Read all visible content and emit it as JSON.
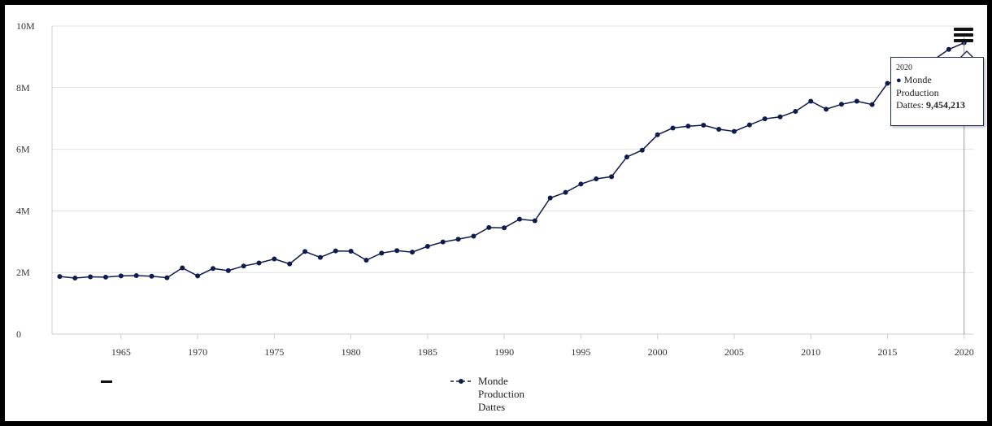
{
  "chart_data": {
    "type": "line",
    "title": "",
    "xlabel": "",
    "ylabel": "",
    "xlim": [
      1960.5,
      2020.6
    ],
    "ylim": [
      0,
      10000000
    ],
    "x_ticks": [
      1965,
      1970,
      1975,
      1980,
      1985,
      1990,
      1995,
      2000,
      2005,
      2010,
      2015,
      2020
    ],
    "y_ticks": [
      0,
      2000000,
      4000000,
      6000000,
      8000000,
      10000000
    ],
    "y_tick_labels": [
      "0",
      "2M",
      "4M",
      "6M",
      "8M",
      "10M"
    ],
    "grid": true,
    "legend_position": "bottom-center",
    "series": [
      {
        "name": "Monde Production Dattes",
        "color": "#0f1b4c",
        "x": [
          1961,
          1962,
          1963,
          1964,
          1965,
          1966,
          1967,
          1968,
          1969,
          1970,
          1971,
          1972,
          1973,
          1974,
          1975,
          1976,
          1977,
          1978,
          1979,
          1980,
          1981,
          1982,
          1983,
          1984,
          1985,
          1986,
          1987,
          1988,
          1989,
          1990,
          1991,
          1992,
          1993,
          1994,
          1995,
          1996,
          1997,
          1998,
          1999,
          2000,
          2001,
          2002,
          2003,
          2004,
          2005,
          2006,
          2007,
          2008,
          2009,
          2010,
          2011,
          2012,
          2013,
          2014,
          2015,
          2016,
          2017,
          2018,
          2019,
          2020
        ],
        "values": [
          1870000,
          1820000,
          1860000,
          1850000,
          1890000,
          1900000,
          1880000,
          1830000,
          2150000,
          1890000,
          2130000,
          2060000,
          2210000,
          2310000,
          2440000,
          2280000,
          2680000,
          2490000,
          2700000,
          2690000,
          2400000,
          2630000,
          2710000,
          2660000,
          2850000,
          2990000,
          3080000,
          3180000,
          3460000,
          3450000,
          3730000,
          3680000,
          4420000,
          4600000,
          4870000,
          5040000,
          5110000,
          5750000,
          5970000,
          6470000,
          6690000,
          6750000,
          6780000,
          6650000,
          6580000,
          6790000,
          6990000,
          7050000,
          7230000,
          7560000,
          7300000,
          7460000,
          7560000,
          7450000,
          8140000,
          8260000,
          8570000,
          8900000,
          9240000,
          9454213
        ]
      }
    ]
  },
  "tooltip": {
    "year": "2020",
    "series_line1": "Monde",
    "series_line2": "Production",
    "series_line3_label": "Dattes: ",
    "value": "9,454,213"
  },
  "legend": {
    "line1": "Monde",
    "line2": "Production",
    "line3": "Dattes"
  },
  "menu": {
    "icon": "hamburger-menu-icon"
  }
}
